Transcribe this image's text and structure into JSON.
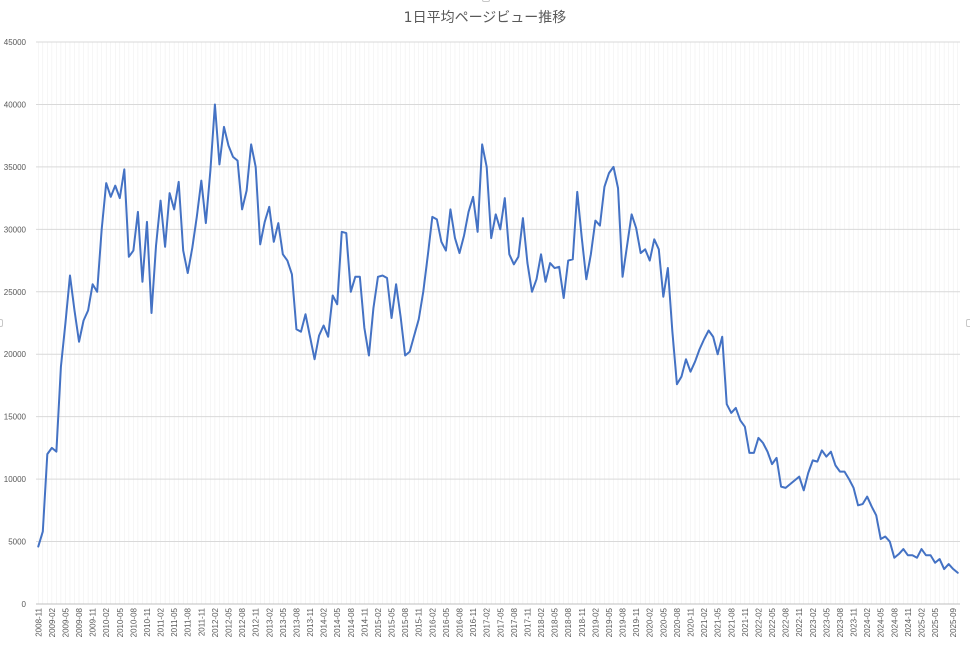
{
  "chart_data": {
    "type": "line",
    "title": "1日平均ページビュー推移",
    "xlabel": "",
    "ylabel": "",
    "ylim": [
      0,
      45000
    ],
    "y_ticks": [
      0,
      5000,
      10000,
      15000,
      20000,
      25000,
      30000,
      35000,
      40000,
      45000
    ],
    "x_ticks": [
      "2008-11",
      "2009-02",
      "2009-05",
      "2009-08",
      "2009-11",
      "2010-02",
      "2010-05",
      "2010-08",
      "2010-11",
      "2011-02",
      "2011-05",
      "2011-08",
      "2011-11",
      "2012-02",
      "2012-05",
      "2012-08",
      "2012-11",
      "2013-02",
      "2013-05",
      "2013-08",
      "2013-11",
      "2014-02",
      "2014-05",
      "2014-08",
      "2014-11",
      "2015-02",
      "2015-05",
      "2015-08",
      "2015-11",
      "2016-02",
      "2016-05",
      "2016-08",
      "2016-11",
      "2017-02",
      "2017-05",
      "2017-08",
      "2017-11",
      "2018-02",
      "2018-05",
      "2018-08",
      "2018-11",
      "2019-02",
      "2019-05",
      "2019-08",
      "2019-11",
      "2020-02",
      "2020-05",
      "2020-08",
      "2020-11",
      "2021-02",
      "2021-05",
      "2021-08",
      "2021-11",
      "2022-02",
      "2022-05",
      "2022-08",
      "2022-11",
      "2023-02",
      "2023-05",
      "2023-08",
      "2023-11",
      "2024-02",
      "2024-05",
      "2024-08",
      "2024-11",
      "2025-02",
      "2025-05",
      "2025-09"
    ],
    "grid": true,
    "legend": "none",
    "line_color": "#4472c4",
    "series": [
      {
        "start": "2008-11",
        "values": [
          4600,
          5800,
          12000,
          12500,
          12200,
          19000,
          22500,
          26300,
          23500,
          21000,
          22700,
          23500,
          25600,
          25000,
          30000,
          33700,
          32600,
          33500,
          32500,
          34800,
          27800,
          28300,
          31400,
          25800,
          30600,
          23300,
          28700,
          32300,
          28600,
          32900,
          31600,
          33800,
          28300,
          26500,
          28500,
          31000,
          33900,
          30500,
          34700,
          40000,
          35200,
          38200,
          36700,
          35800,
          35500,
          31600,
          33100,
          36800,
          35000,
          28800,
          30600,
          31800,
          29000,
          30500,
          28000,
          27500,
          26400,
          22000,
          21800,
          23200,
          21400,
          19600,
          21500,
          22300,
          21400,
          24700,
          24000,
          29800,
          29700,
          25000,
          26200,
          26200,
          22100,
          19900,
          23700,
          26200,
          26300,
          26100,
          22900,
          25600,
          23000,
          19900,
          20200,
          21500,
          22800,
          25000,
          27900,
          31000,
          30800,
          29000,
          28300,
          31600,
          29300,
          28100,
          29500,
          31400,
          32600,
          29800,
          36800,
          35000,
          29300,
          31200,
          30000,
          32500,
          28000,
          27200,
          27800,
          30900,
          27300,
          25000,
          26000,
          28000,
          25800,
          27300,
          26900,
          27000,
          24500,
          27500,
          27600,
          33000,
          29300,
          26000,
          28000,
          30700,
          30300,
          33400,
          34500,
          35000,
          33300,
          26200,
          28700,
          31200,
          30100,
          28100,
          28400,
          27500,
          29200,
          28400,
          24600,
          26900,
          21800,
          17600,
          18200,
          19600,
          18600,
          19400,
          20400,
          21200,
          21900,
          21400,
          20000,
          21400,
          16000,
          15300,
          15700,
          14700,
          14200,
          12100,
          12100,
          13300,
          12900,
          12200,
          11200,
          11700,
          9400,
          9300,
          9600,
          9900,
          10200,
          9100,
          10500,
          11500,
          11400,
          12300,
          11800,
          12200,
          11100,
          10600,
          10600,
          10000,
          9300,
          7900,
          8000,
          8600,
          7800,
          7100,
          5200,
          5400,
          5000,
          3700,
          4000,
          4400,
          3900,
          3900,
          3700,
          4400,
          3900,
          3900,
          3300,
          3600,
          2800,
          3200,
          2800,
          2500
        ]
      }
    ]
  }
}
